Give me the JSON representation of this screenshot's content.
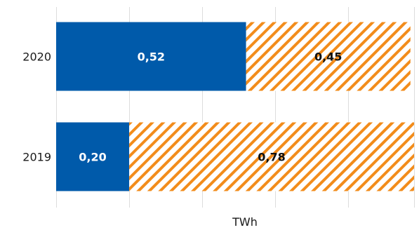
{
  "chart_data": {
    "type": "bar",
    "orientation": "horizontal",
    "stacked": true,
    "categories": [
      "2020",
      "2019"
    ],
    "series": [
      {
        "values": [
          0.52,
          0.2
        ],
        "labels": [
          "0,52",
          "0,20"
        ],
        "color": "#005aaa",
        "pattern": "solid"
      },
      {
        "values": [
          0.45,
          0.78
        ],
        "labels": [
          "0,45",
          "0,78"
        ],
        "color": "#f28c1b",
        "pattern": "diagonal-hatch"
      }
    ],
    "xlabel": "TWh",
    "xlim": [
      0,
      0.98
    ],
    "grid": "vertical",
    "gridlines": [
      0,
      0.2,
      0.4,
      0.6,
      0.8,
      0.98
    ],
    "legend": "none"
  }
}
